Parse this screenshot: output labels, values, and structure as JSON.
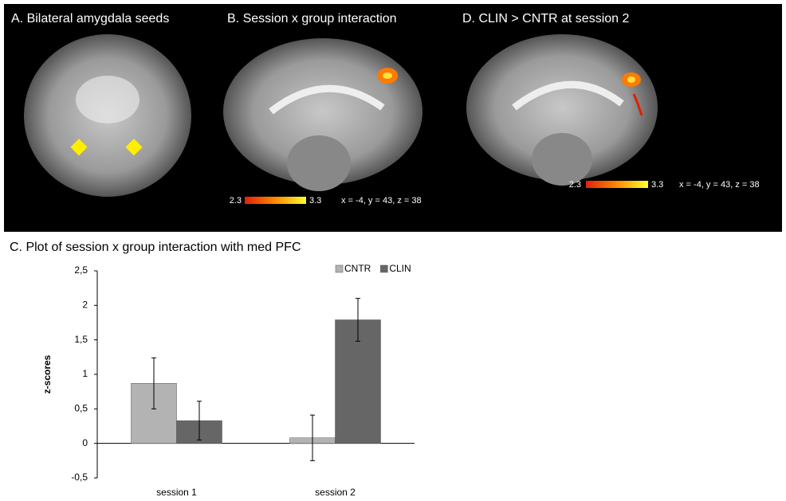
{
  "panels": [
    {
      "title": "A. Bilateral amygdala seeds"
    },
    {
      "title": "B. Session x group interaction",
      "colorbar": [
        2.3,
        3.3
      ],
      "coords": "x = -4, y = 43, z = 38"
    },
    {
      "title": "D. CLIN > CNTR at session 2",
      "colorbar": [
        2.3,
        3.3
      ],
      "coords": "x = -4, y = 43, z = 38"
    }
  ],
  "chart_data": {
    "type": "bar",
    "title": "C. Plot of session x group interaction with med PFC",
    "y_label": "z-scores",
    "categories": [
      "session 1",
      "session 2"
    ],
    "series": [
      {
        "name": "CNTR",
        "color": "#b3b3b3",
        "values": [
          0.87,
          0.08
        ],
        "errors": [
          0.37,
          0.33
        ]
      },
      {
        "name": "CLIN",
        "color": "#666666",
        "values": [
          0.33,
          1.79
        ],
        "errors": [
          0.28,
          0.31
        ]
      }
    ],
    "ylim": [
      -0.5,
      2.5
    ],
    "yticks": [
      {
        "value": -0.5,
        "label": "-0,5"
      },
      0,
      {
        "value": 0.5,
        "label": "0,5"
      },
      1,
      {
        "value": 1.5,
        "label": "1,5"
      },
      2,
      {
        "value": 2.5,
        "label": "2,5"
      }
    ],
    "legend": "top-right"
  }
}
